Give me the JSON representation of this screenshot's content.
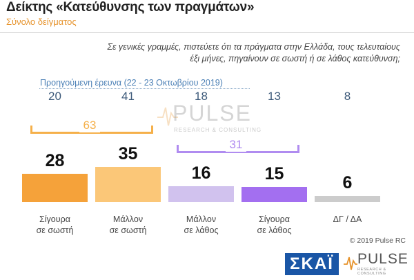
{
  "header": {
    "title": "Δείκτης «Κατεύθυνσης των πραγμάτων»",
    "subtitle": "Σύνολο δείγματος"
  },
  "question": {
    "line1": "Σε γενικές γραμμές, πιστεύετε ότι τα πράγματα στην Ελλάδα, τους τελευταίους",
    "line2": "έξι μήνες, πηγαίνουν σε σωστή ή σε λάθος κατεύθυνση;"
  },
  "previous_survey": {
    "label": "Προηγούμενη έρευνα  (22 - 23  Οκτωβρίου  2019)"
  },
  "chart_data": {
    "type": "bar",
    "categories": [
      [
        "Σίγουρα",
        "σε σωστή"
      ],
      [
        "Μάλλον",
        "σε σωστή"
      ],
      [
        "Μάλλον",
        "σε λάθος"
      ],
      [
        "Σίγουρα",
        "σε λάθος"
      ],
      [
        "ΔΓ / ΔΑ"
      ]
    ],
    "values": [
      28,
      35,
      16,
      15,
      6
    ],
    "previous_values": [
      20,
      41,
      18,
      13,
      8
    ],
    "colors": [
      "#f5a23a",
      "#fbc778",
      "#d1c2ee",
      "#a36ff0",
      "#cccccc"
    ],
    "groups": [
      {
        "total": "63",
        "color": "#f5b04a",
        "span": [
          0,
          1
        ]
      },
      {
        "total": "31",
        "color": "#b08cf0",
        "span": [
          2,
          3
        ]
      }
    ]
  },
  "footer": {
    "copyright": "© 2019 Pulse RC",
    "skai_logo": "ΣΚΑΪ",
    "pulse_logo": "PULSE",
    "pulse_tagline": "RESEARCH & CONSULTING"
  },
  "watermark": {
    "text": "PULSE",
    "tagline": "RESEARCH & CONSULTING"
  }
}
